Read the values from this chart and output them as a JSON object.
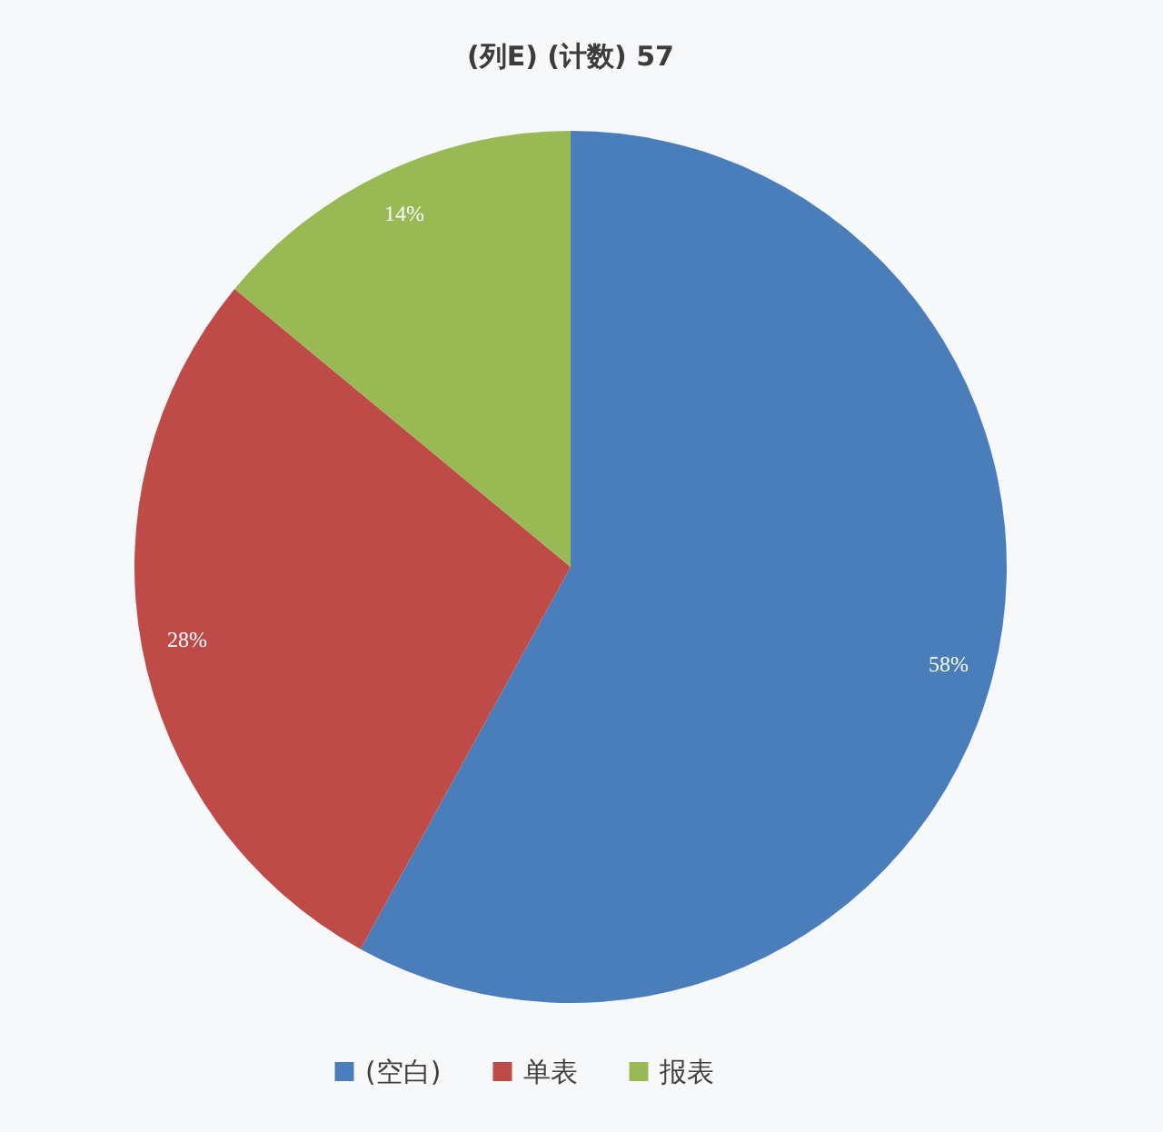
{
  "chart_data": {
    "type": "pie",
    "title": "(列E) (计数) 57",
    "categories": [
      "(空白)",
      "单表",
      "报表"
    ],
    "values": [
      58,
      28,
      14
    ],
    "colors": [
      "#4a7ebb",
      "#be4b48",
      "#98b954"
    ],
    "value_labels": [
      "58%",
      "28%",
      "14%"
    ],
    "legend": "bottom"
  }
}
